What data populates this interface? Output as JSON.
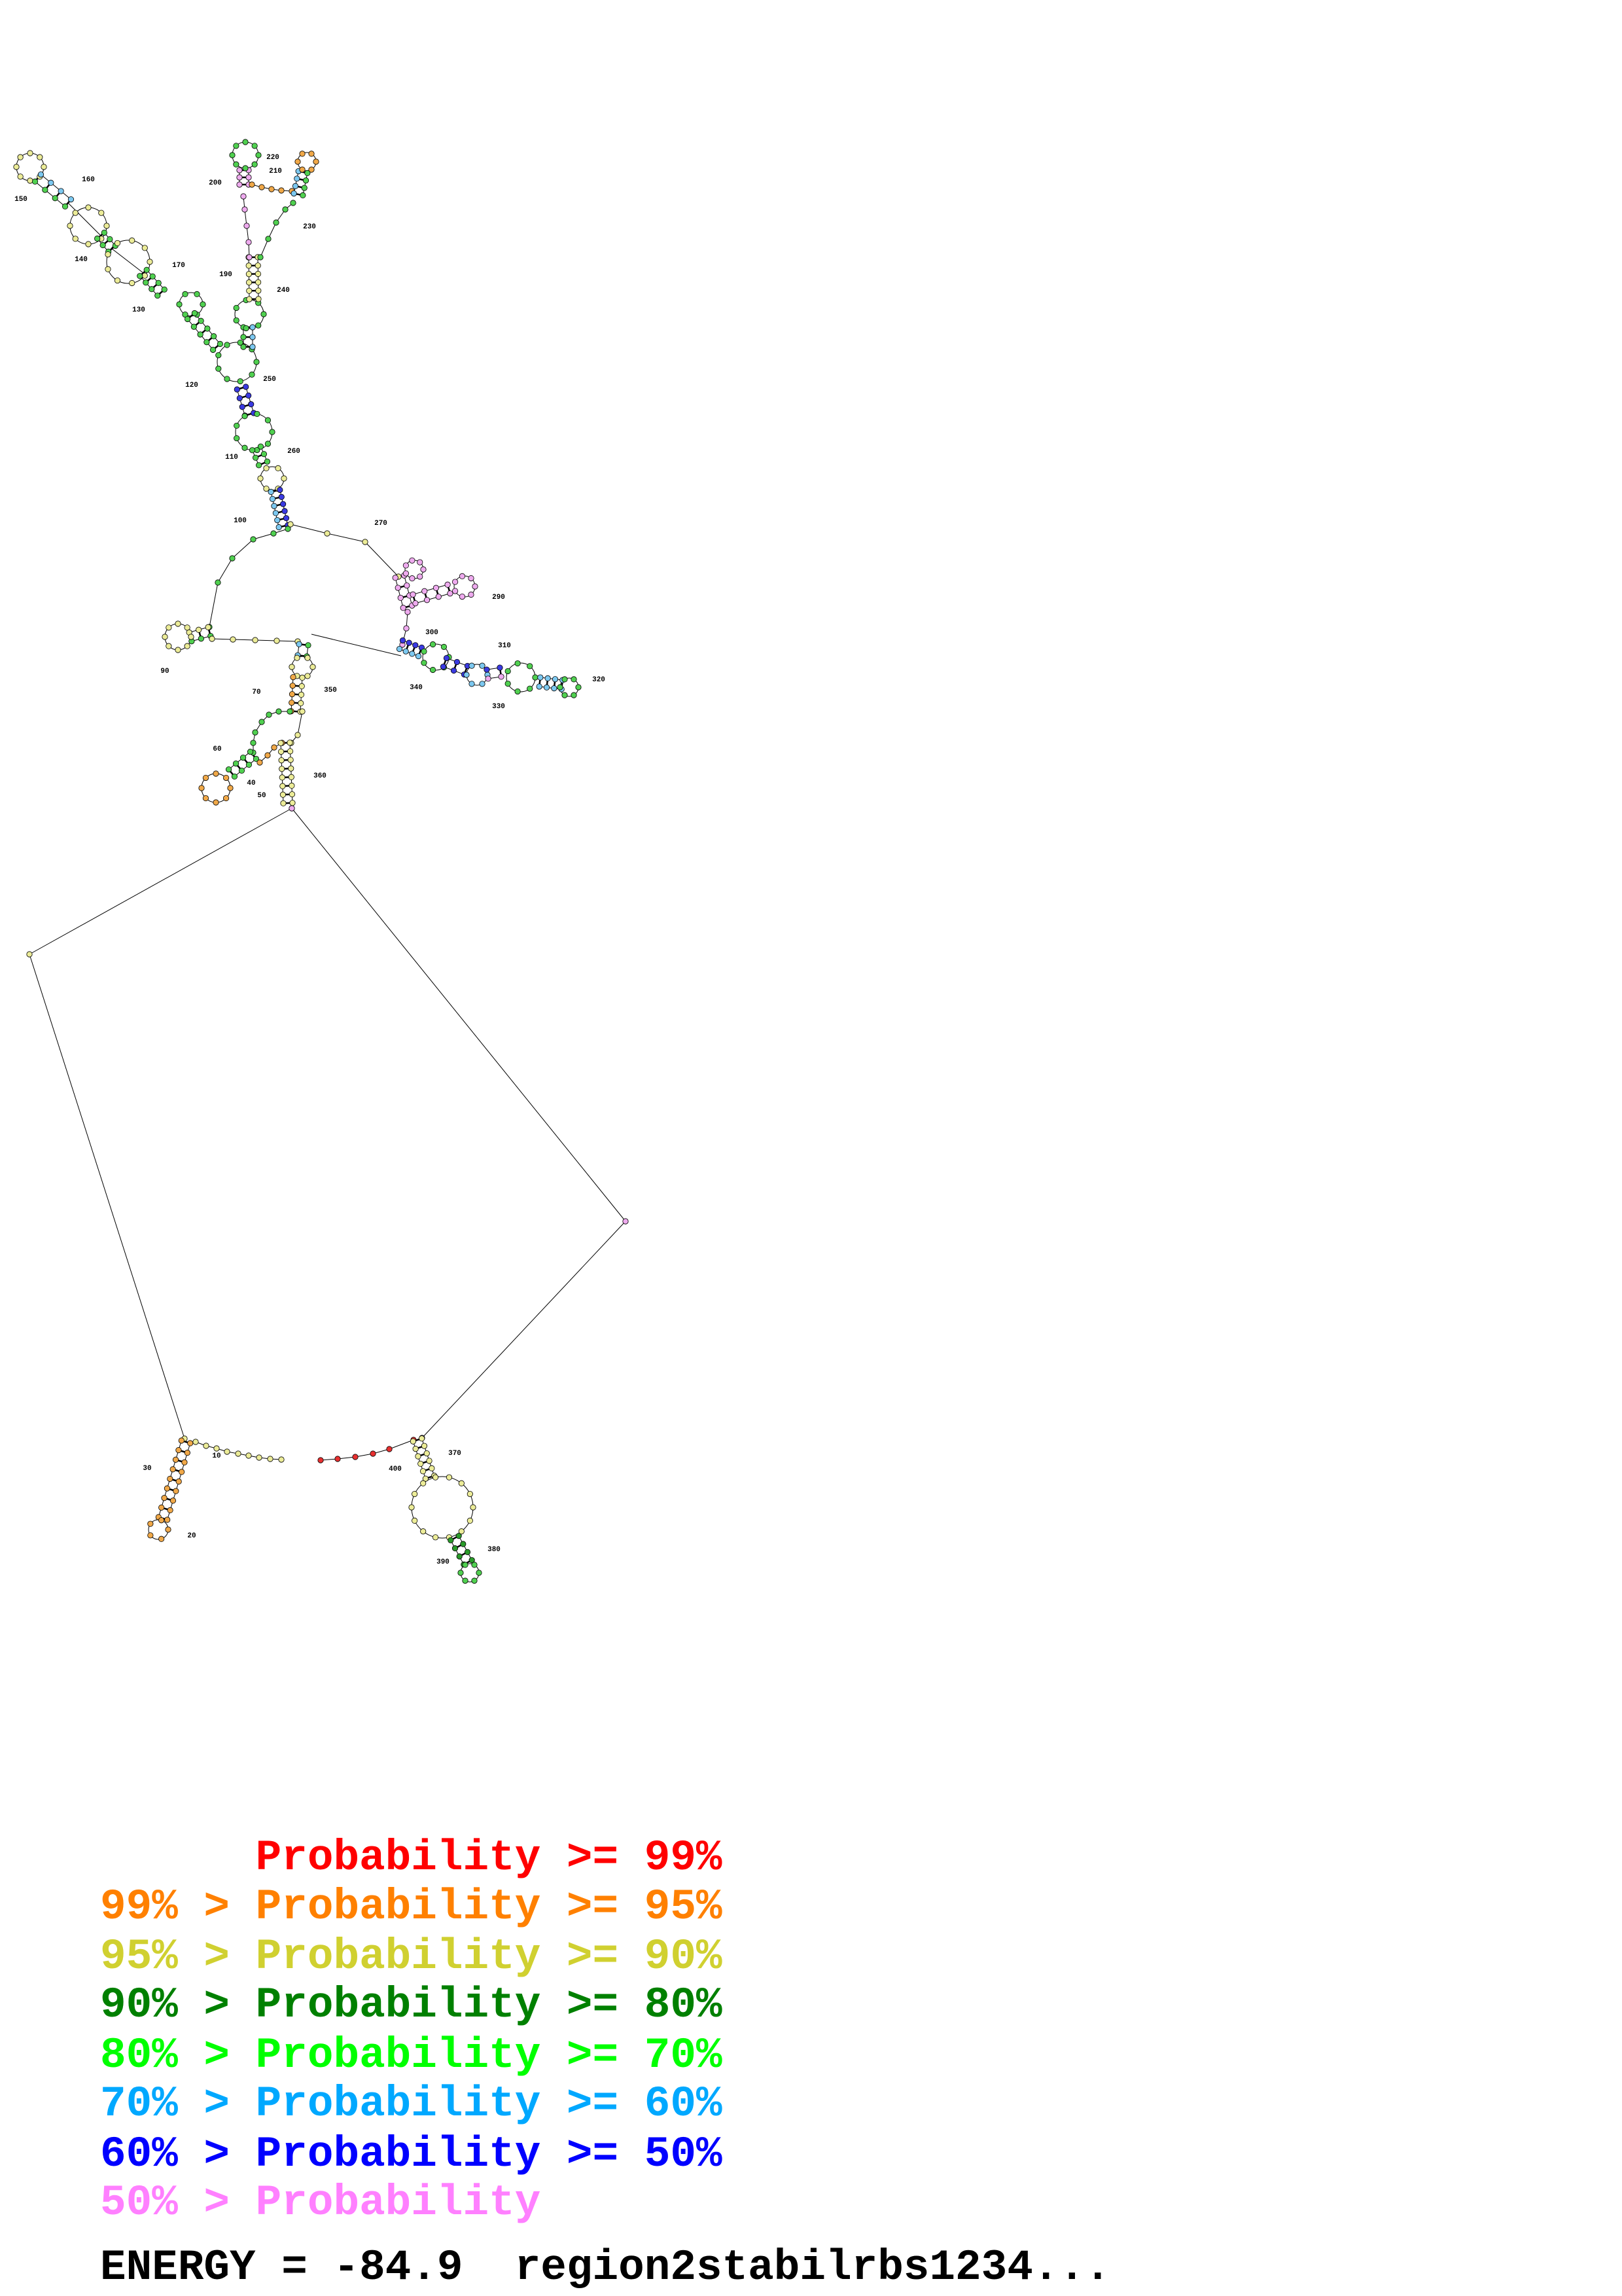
{
  "structure": {
    "position_labels": [
      "10",
      "20",
      "30",
      "40",
      "50",
      "60",
      "70",
      "90",
      "100",
      "110",
      "120",
      "130",
      "140",
      "150",
      "160",
      "170",
      "190",
      "200",
      "210",
      "220",
      "230",
      "240",
      "250",
      "260",
      "270",
      "290",
      "300",
      "310",
      "320",
      "330",
      "340",
      "350",
      "360",
      "370",
      "380",
      "390",
      "400"
    ]
  },
  "legend": {
    "lines": [
      {
        "prefix": "",
        "text": "Probability >= 99%",
        "color": "#ff0000"
      },
      {
        "prefix": "99% > ",
        "text": "Probability >= 95%",
        "color": "#ff8000"
      },
      {
        "prefix": "95% > ",
        "text": "Probability >= 90%",
        "color": "#d0d030"
      },
      {
        "prefix": "90% > ",
        "text": "Probability >= 80%",
        "color": "#008000"
      },
      {
        "prefix": "80% > ",
        "text": "Probability >= 70%",
        "color": "#00ff00"
      },
      {
        "prefix": "70% > ",
        "text": "Probability >= 60%",
        "color": "#00a8ff"
      },
      {
        "prefix": "60% > ",
        "text": "Probability >= 50%",
        "color": "#0000ff"
      },
      {
        "prefix": "50% > ",
        "text": "Probability",
        "color": "#ff80ff"
      }
    ]
  },
  "footer": {
    "energy": "ENERGY = -84.9  region2stabilrbs1234..."
  }
}
